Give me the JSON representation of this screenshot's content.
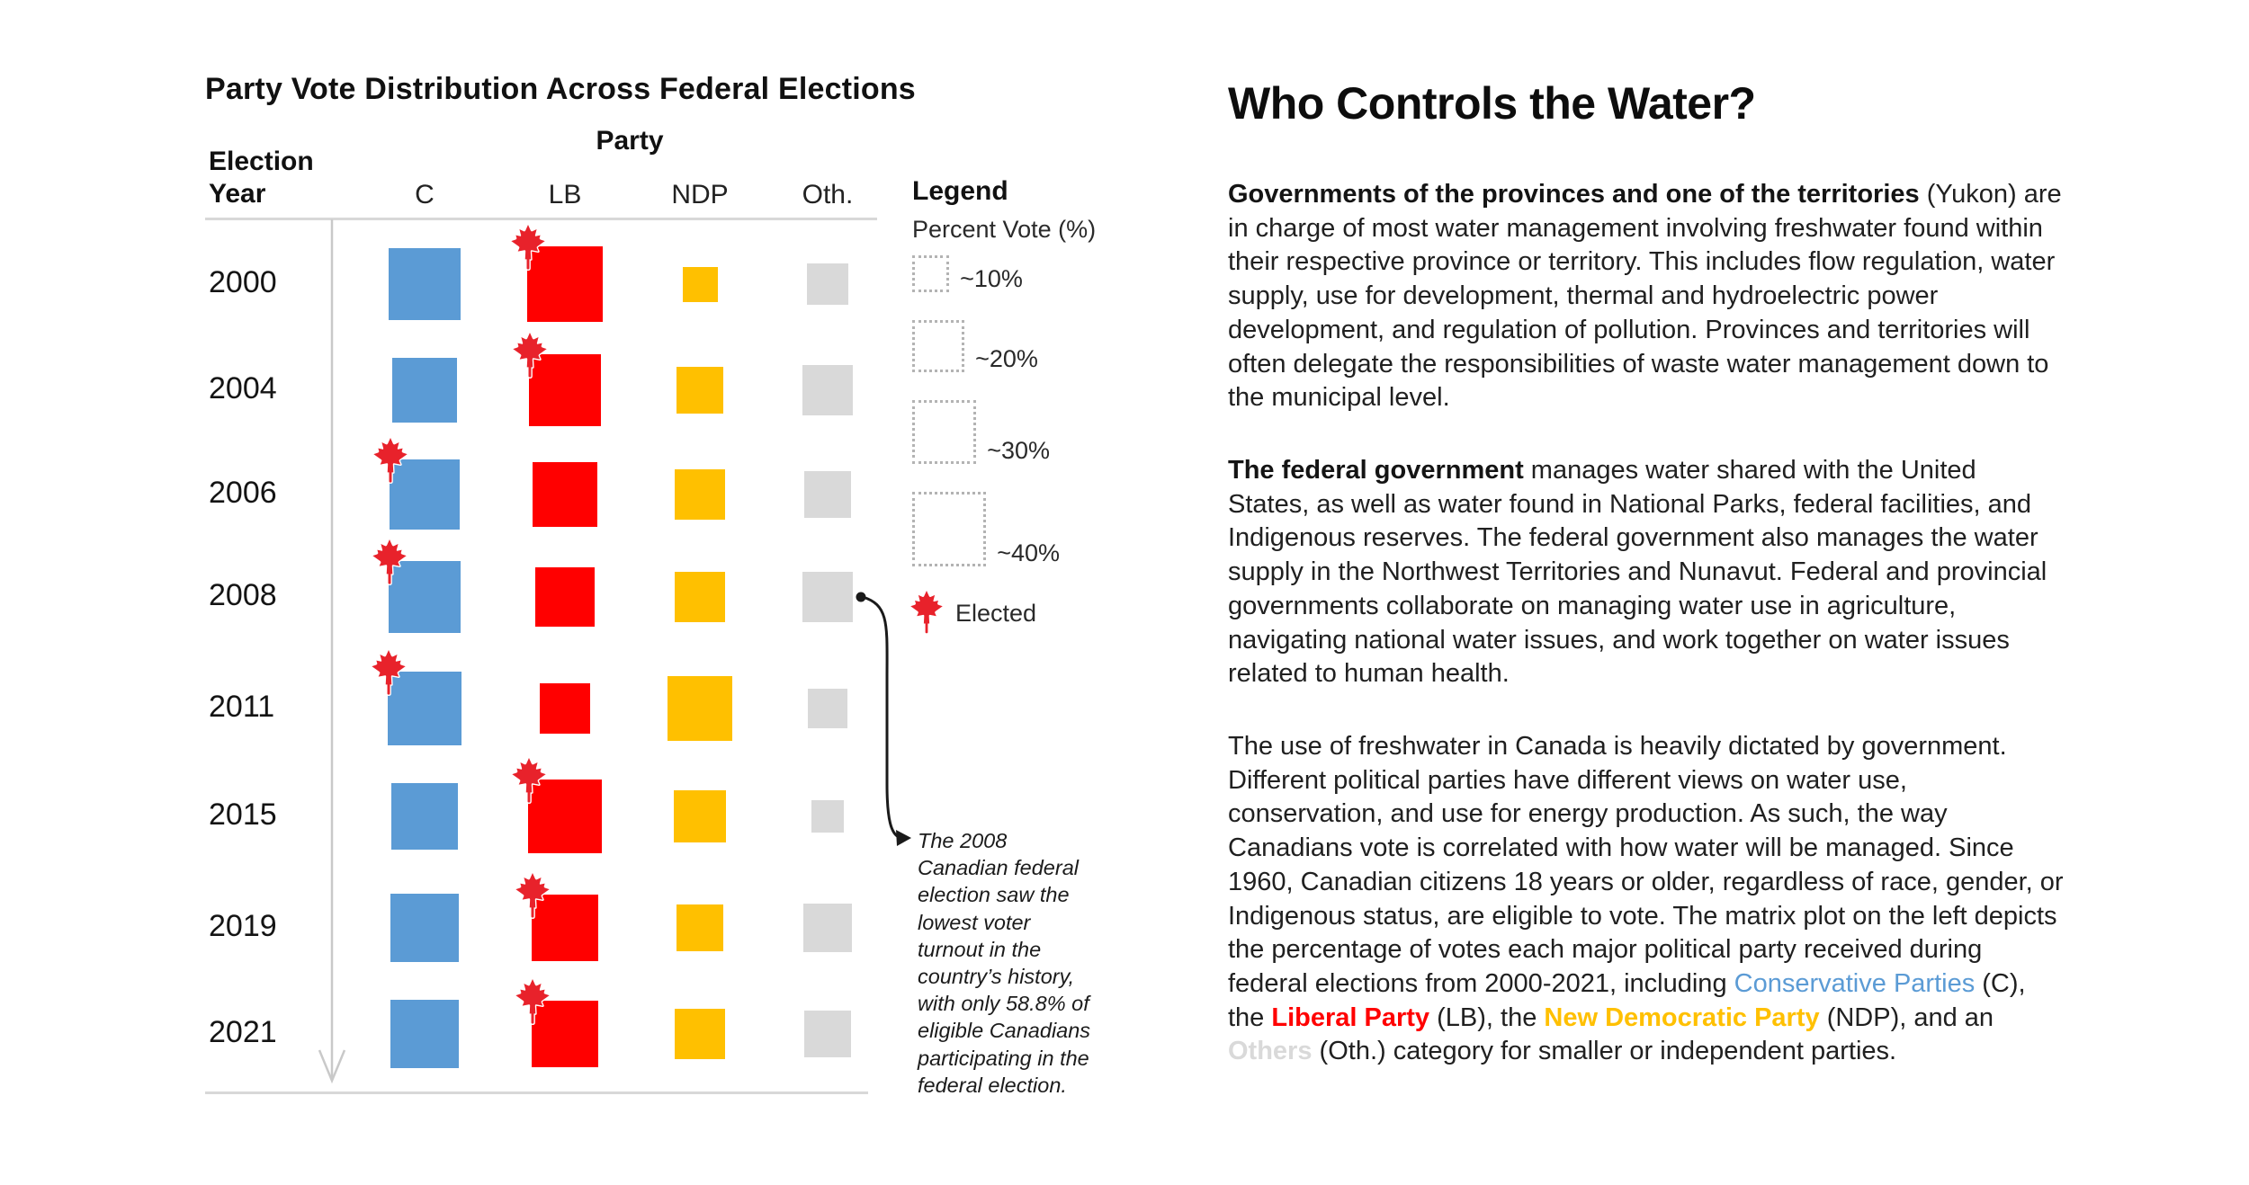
{
  "meta": {
    "background": "#FFFFFF",
    "accent_blue": "#5B9BD5",
    "accent_red": "#FF0000",
    "accent_yellow": "#FFC000",
    "accent_gray": "#D9D9D9",
    "leaf_red": "#E8222B"
  },
  "chart": {
    "title": "Party Vote Distribution Across Federal Elections",
    "x_axis_title": "Party",
    "y_axis_title": "Election\nYear",
    "columns": [
      {
        "label": "C",
        "color": "#5B9BD5"
      },
      {
        "label": "LB",
        "color": "#FF0000"
      },
      {
        "label": "NDP",
        "color": "#FFC000"
      },
      {
        "label": "Oth.",
        "color": "#D9D9D9"
      }
    ]
  },
  "chart_data": {
    "type": "matrix-size",
    "title": "Party Vote Distribution Across Federal Elections",
    "xlabel": "Party",
    "ylabel": "Election Year",
    "x_categories": [
      "C",
      "LB",
      "NDP",
      "Oth."
    ],
    "y_categories": [
      "2000",
      "2004",
      "2006",
      "2008",
      "2011",
      "2015",
      "2019",
      "2021"
    ],
    "value_unit": "approx. percent of vote (square size encodes %)",
    "rows": [
      {
        "year": "2000",
        "values": [
          38,
          41,
          9,
          13
        ],
        "elected": "LB"
      },
      {
        "year": "2004",
        "values": [
          30,
          37,
          16,
          18
        ],
        "elected": "LB"
      },
      {
        "year": "2006",
        "values": [
          36,
          30,
          18,
          16
        ],
        "elected": "C"
      },
      {
        "year": "2008",
        "values": [
          38,
          26,
          18,
          18
        ],
        "elected": "C"
      },
      {
        "year": "2011",
        "values": [
          40,
          19,
          31,
          11
        ],
        "elected": "C"
      },
      {
        "year": "2015",
        "values": [
          32,
          40,
          20,
          8
        ],
        "elected": "LB"
      },
      {
        "year": "2019",
        "values": [
          34,
          33,
          16,
          17
        ],
        "elected": "LB"
      },
      {
        "year": "2021",
        "values": [
          34,
          33,
          18,
          16
        ],
        "elected": "LB"
      }
    ],
    "size_legend_percents": [
      10,
      20,
      30,
      40
    ],
    "legend_position": "right",
    "grid": false
  },
  "legend": {
    "title": "Legend",
    "subtitle": "Percent Vote (%)",
    "items": [
      {
        "label": "~10%",
        "pct": 10
      },
      {
        "label": "~20%",
        "pct": 20
      },
      {
        "label": "~30%",
        "pct": 30
      },
      {
        "label": "~40%",
        "pct": 40
      }
    ],
    "elected_label": "Elected"
  },
  "annotation": {
    "lines": [
      "The 2008",
      "Canadian federal",
      "election saw the",
      "lowest voter",
      "turnout in the",
      "country’s history,",
      "with only 58.8% of",
      "eligible Canadians",
      "participating in the",
      "federal election."
    ]
  },
  "article": {
    "title": "Who Controls the Water?",
    "paragraphs": [
      {
        "segments": [
          {
            "text": "Governments of the provinces and one of the territories",
            "bold": true
          },
          {
            "text": " (Yukon) are in charge of most water management involving freshwater found within their respective province or territory. This includes flow regulation, water supply, use for development, thermal and hydroelectric power development, and regulation of pollution. Provinces and territories will often delegate the responsibilities of waste water management down to the municipal level."
          }
        ]
      },
      {
        "segments": [
          {
            "text": "The federal government",
            "bold": true
          },
          {
            "text": " manages water shared with the United States, as well as  water found in National Parks, federal facilities, and Indigenous reserves. The federal government also manages the water supply in the Northwest Territories and Nunavut. Federal and provincial governments collaborate on managing water use in agriculture, navigating national water issues, and work together on water issues related to human health."
          }
        ]
      },
      {
        "segments": [
          {
            "text": "The use of freshwater in Canada is heavily dictated by government. Different political parties have different views on water use, conservation, and use for energy production. As such, the way Canadians vote is correlated with how water will be managed. Since 1960, Canadian citizens 18 years or older, regardless of race, gender, or Indigenous status, are eligible to vote. The matrix plot on the left depicts the percentage of votes each major political party received during federal elections from 2000-2021, including "
          },
          {
            "text": "Conservative Parties",
            "color": "#5B9BD5"
          },
          {
            "text": " (C), the "
          },
          {
            "text": "Liberal Party",
            "bold": true,
            "color": "#FF0000"
          },
          {
            "text": " (LB), the "
          },
          {
            "text": "New Democratic Party",
            "bold": true,
            "color": "#FFC000"
          },
          {
            "text": " (NDP), and an "
          },
          {
            "text": "Others",
            "bold": true,
            "color": "#D9D9D9"
          },
          {
            "text": " (Oth.) category for smaller or independent parties."
          }
        ]
      }
    ]
  }
}
